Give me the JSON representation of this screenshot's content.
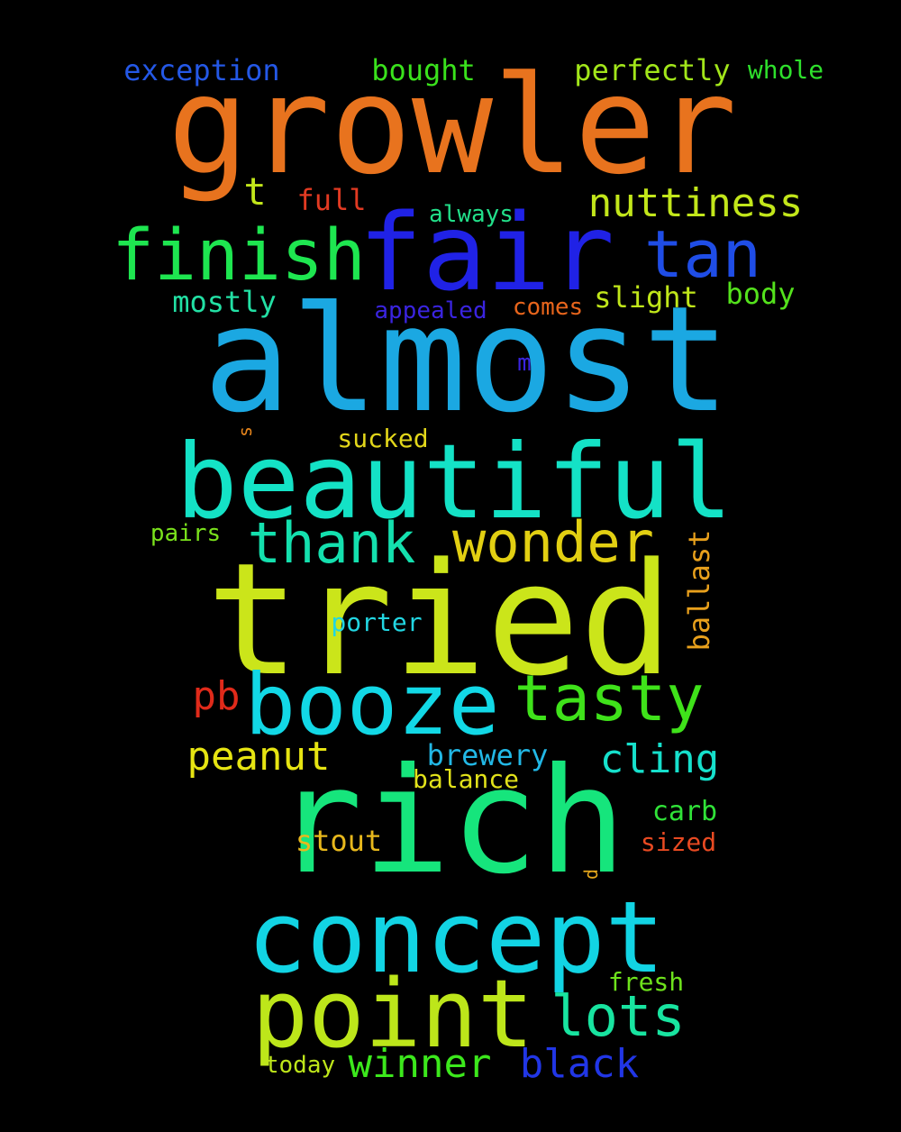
{
  "words": [
    {
      "text": "growler",
      "color": "#e8731e"
    },
    {
      "text": "almost",
      "color": "#1ba8e2"
    },
    {
      "text": "tried",
      "color": "#cbe51a"
    },
    {
      "text": "rich",
      "color": "#16e57c"
    },
    {
      "text": "beautiful",
      "color": "#14e2c6"
    },
    {
      "text": "concept",
      "color": "#12d4e4"
    },
    {
      "text": "fair",
      "color": "#2022e6"
    },
    {
      "text": "point",
      "color": "#bde61a"
    },
    {
      "text": "booze",
      "color": "#12d8e6"
    },
    {
      "text": "finish",
      "color": "#1ee650"
    },
    {
      "text": "tan",
      "color": "#1f4de6"
    },
    {
      "text": "tasty",
      "color": "#3fe21a"
    },
    {
      "text": "thank",
      "color": "#14e0ae"
    },
    {
      "text": "wonder",
      "color": "#e2cf12"
    },
    {
      "text": "lots",
      "color": "#18e4a0"
    },
    {
      "text": "nuttiness",
      "color": "#c2e61a"
    },
    {
      "text": "peanut",
      "color": "#e6e412"
    },
    {
      "text": "cling",
      "color": "#16e0cc"
    },
    {
      "text": "winner",
      "color": "#3ce81c"
    },
    {
      "text": "black",
      "color": "#2136e6"
    },
    {
      "text": "pb",
      "color": "#e02a1a"
    },
    {
      "text": "exception",
      "color": "#2458e6"
    },
    {
      "text": "bought",
      "color": "#3ae21c"
    },
    {
      "text": "perfectly",
      "color": "#a2e61a"
    },
    {
      "text": "whole",
      "color": "#2ee02c"
    },
    {
      "text": "t",
      "color": "#c2e61a"
    },
    {
      "text": "full",
      "color": "#e23a22"
    },
    {
      "text": "always",
      "color": "#22e08a"
    },
    {
      "text": "mostly",
      "color": "#22e0a4"
    },
    {
      "text": "slight",
      "color": "#c0e61a"
    },
    {
      "text": "body",
      "color": "#54e21c"
    },
    {
      "text": "appealed",
      "color": "#3a24e0"
    },
    {
      "text": "comes",
      "color": "#e8651c"
    },
    {
      "text": "m",
      "color": "#3a24e0"
    },
    {
      "text": "s",
      "color": "#e8861c"
    },
    {
      "text": "sucked",
      "color": "#e2d61a"
    },
    {
      "text": "pairs",
      "color": "#7ae21c"
    },
    {
      "text": "ballast",
      "color": "#e8a01c"
    },
    {
      "text": "porter",
      "color": "#22d6e2"
    },
    {
      "text": "brewery",
      "color": "#22b8e6"
    },
    {
      "text": "balance",
      "color": "#e2e21a"
    },
    {
      "text": "carb",
      "color": "#30e238"
    },
    {
      "text": "stout",
      "color": "#e8b81c"
    },
    {
      "text": "sized",
      "color": "#e84a22"
    },
    {
      "text": "d",
      "color": "#e8a81c"
    },
    {
      "text": "fresh",
      "color": "#6ee21c"
    },
    {
      "text": "today",
      "color": "#bee61a"
    }
  ]
}
